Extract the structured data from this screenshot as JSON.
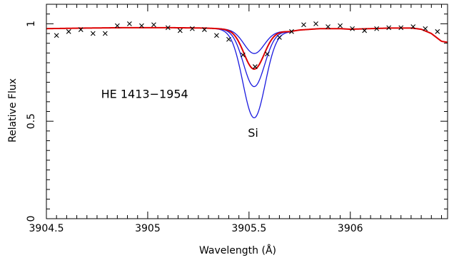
{
  "chart_data": {
    "type": "line",
    "title": "",
    "xlabel": "Wavelength (Å)",
    "ylabel": "Relative Flux",
    "xlim": [
      3904.5,
      3906.48
    ],
    "ylim": [
      0,
      1.1
    ],
    "x_ticks": [
      {
        "value": 3904.5,
        "label": "3904.5"
      },
      {
        "value": 3905,
        "label": "3905"
      },
      {
        "value": 3905.5,
        "label": "3905.5"
      },
      {
        "value": 3906,
        "label": "3906"
      }
    ],
    "y_ticks": [
      {
        "value": 0,
        "label": "0"
      },
      {
        "value": 0.5,
        "label": "0.5"
      },
      {
        "value": 1,
        "label": "1"
      }
    ],
    "annotations": [
      {
        "text": "HE 1413−1954",
        "x": 3904.77,
        "y": 0.62
      },
      {
        "text": "Si",
        "x": 3905.52,
        "y": 0.42
      }
    ],
    "colors": {
      "best_fit": "#dd0000",
      "models": "#1a1adf",
      "observed": "#000000",
      "axes": "#000000"
    },
    "observed": {
      "marker": "x",
      "x": [
        3904.55,
        3904.61,
        3904.67,
        3904.73,
        3904.79,
        3904.85,
        3904.91,
        3904.97,
        3905.03,
        3905.1,
        3905.16,
        3905.22,
        3905.28,
        3905.34,
        3905.4,
        3905.47,
        3905.53,
        3905.59,
        3905.65,
        3905.71,
        3905.77,
        3905.83,
        3905.89,
        3905.95,
        3906.01,
        3906.07,
        3906.13,
        3906.19,
        3906.25,
        3906.31,
        3906.37,
        3906.43
      ],
      "y": [
        0.94,
        0.96,
        0.97,
        0.95,
        0.95,
        0.99,
        1.0,
        0.99,
        0.995,
        0.98,
        0.965,
        0.975,
        0.97,
        0.94,
        0.92,
        0.84,
        0.78,
        0.845,
        0.93,
        0.96,
        0.995,
        1.0,
        0.985,
        0.99,
        0.975,
        0.965,
        0.975,
        0.98,
        0.98,
        0.985,
        0.975,
        0.96
      ]
    },
    "continuum": [
      [
        3904.5,
        0.975
      ],
      [
        3904.7,
        0.978
      ],
      [
        3904.9,
        0.98
      ],
      [
        3905.1,
        0.98
      ],
      [
        3905.2,
        0.979
      ],
      [
        3905.28,
        0.978
      ],
      [
        3905.7,
        0.96
      ],
      [
        3905.75,
        0.968
      ],
      [
        3905.85,
        0.975
      ],
      [
        3905.95,
        0.975
      ],
      [
        3906.0,
        0.972
      ],
      [
        3906.1,
        0.975
      ],
      [
        3906.2,
        0.978
      ],
      [
        3906.3,
        0.978
      ],
      [
        3906.35,
        0.972
      ],
      [
        3906.4,
        0.95
      ],
      [
        3906.45,
        0.91
      ],
      [
        3906.48,
        0.905
      ]
    ],
    "line_center": 3905.525,
    "series": [
      {
        "role": "best_fit",
        "depth": 0.2,
        "width": 0.05
      },
      {
        "role": "model",
        "depth": 0.12,
        "width": 0.05
      },
      {
        "role": "model",
        "depth": 0.29,
        "width": 0.052
      },
      {
        "role": "model",
        "depth": 0.45,
        "width": 0.055
      }
    ]
  }
}
